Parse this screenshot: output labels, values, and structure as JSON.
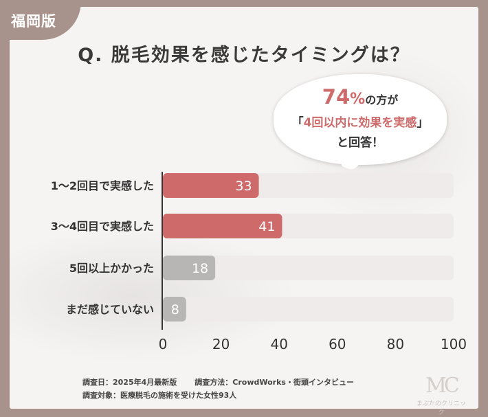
{
  "corner_label": "福岡版",
  "title": "Q. 脱毛効果を感じたタイミングは？",
  "callout": {
    "percent": "74",
    "percent_sign": "%",
    "line1_suffix": "の方が",
    "open_bracket": "「",
    "highlight": "4回以内に効果を実感",
    "close_bracket": "」",
    "line3": "と回答！"
  },
  "chart_data": {
    "type": "bar",
    "orientation": "horizontal",
    "categories": [
      "1〜2回目で実感した",
      "3〜4回目で実感した",
      "5回以上かかった",
      "まだ感じていない"
    ],
    "values": [
      33,
      41,
      18,
      8
    ],
    "value_labels": [
      "33",
      "41",
      "18",
      "8"
    ],
    "xlim": [
      0,
      100
    ],
    "xticks": [
      "0",
      "20",
      "40",
      "60",
      "80",
      "100"
    ],
    "grid": false,
    "bar_colors": [
      "#cf6a6a",
      "#cf6a6a",
      "#b8b6b5",
      "#b8b6b5"
    ],
    "track_color": "#efebea"
  },
  "footer": {
    "survey_date": "調査日：2025年4月最新版",
    "survey_method": "調査方法：CrowdWorks・街頭インタビュー",
    "survey_target": "調査対象：医療脱毛の施術を受けた女性93人"
  },
  "logo": {
    "mark": "MC",
    "name": "まぶたのクリニック"
  }
}
